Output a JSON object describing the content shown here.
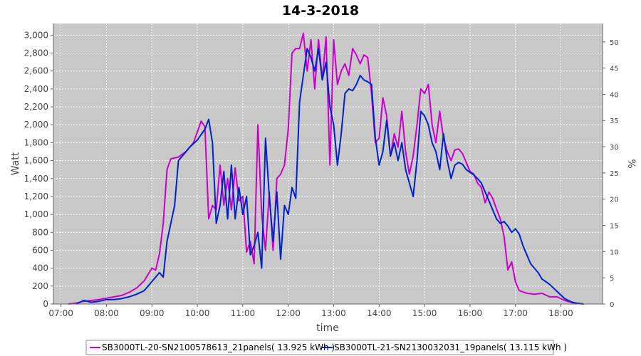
{
  "chart_data": {
    "type": "line",
    "title": "14-3-2018",
    "xlabel": "time",
    "ylabel": "Watt",
    "ylabel_right": "%",
    "x_ticks": [
      "07:00",
      "08:00",
      "09:00",
      "10:00",
      "11:00",
      "12:00",
      "13:00",
      "14:00",
      "15:00",
      "16:00",
      "17:00",
      "18:00"
    ],
    "y_ticks": [
      "0",
      "200",
      "400",
      "600",
      "800",
      "1,000",
      "1,200",
      "1,400",
      "1,600",
      "1,800",
      "2,000",
      "2,200",
      "2,400",
      "2,600",
      "2,800",
      "3,000"
    ],
    "y_right_ticks": [
      "0",
      "5",
      "10",
      "15",
      "20",
      "25",
      "30",
      "35",
      "40",
      "45",
      "50"
    ],
    "xlim": [
      "06:50",
      "18:55"
    ],
    "ylim": [
      0,
      3130
    ],
    "grid": true,
    "background": "#c8c8c8",
    "legend_position": "bottom",
    "series": [
      {
        "name": "SB3000TL-20-SN2100578613_21panels( 13.925 kWh )",
        "color": "#cc00cc",
        "points": [
          [
            "07:10",
            0
          ],
          [
            "07:20",
            10
          ],
          [
            "07:30",
            30
          ],
          [
            "07:40",
            40
          ],
          [
            "07:50",
            50
          ],
          [
            "08:00",
            65
          ],
          [
            "08:10",
            80
          ],
          [
            "08:20",
            95
          ],
          [
            "08:30",
            130
          ],
          [
            "08:40",
            180
          ],
          [
            "08:50",
            260
          ],
          [
            "09:00",
            400
          ],
          [
            "09:05",
            380
          ],
          [
            "09:10",
            560
          ],
          [
            "09:15",
            900
          ],
          [
            "09:20",
            1500
          ],
          [
            "09:25",
            1620
          ],
          [
            "09:35",
            1640
          ],
          [
            "09:45",
            1700
          ],
          [
            "09:55",
            1800
          ],
          [
            "10:05",
            2040
          ],
          [
            "10:10",
            1980
          ],
          [
            "10:15",
            950
          ],
          [
            "10:20",
            1100
          ],
          [
            "10:25",
            1050
          ],
          [
            "10:30",
            1550
          ],
          [
            "10:35",
            1100
          ],
          [
            "10:40",
            1400
          ],
          [
            "10:45",
            1050
          ],
          [
            "10:50",
            1520
          ],
          [
            "10:55",
            1150
          ],
          [
            "11:00",
            1200
          ],
          [
            "11:05",
            580
          ],
          [
            "11:10",
            700
          ],
          [
            "11:15",
            450
          ],
          [
            "11:20",
            2000
          ],
          [
            "11:25",
            1000
          ],
          [
            "11:30",
            600
          ],
          [
            "11:35",
            1250
          ],
          [
            "11:40",
            600
          ],
          [
            "11:45",
            1400
          ],
          [
            "11:50",
            1450
          ],
          [
            "11:55",
            1550
          ],
          [
            "12:00",
            1950
          ],
          [
            "12:05",
            2800
          ],
          [
            "12:10",
            2850
          ],
          [
            "12:15",
            2850
          ],
          [
            "12:20",
            3020
          ],
          [
            "12:25",
            2600
          ],
          [
            "12:30",
            2950
          ],
          [
            "12:35",
            2400
          ],
          [
            "12:40",
            2950
          ],
          [
            "12:45",
            2500
          ],
          [
            "12:50",
            2980
          ],
          [
            "12:55",
            1550
          ],
          [
            "13:00",
            2950
          ],
          [
            "13:05",
            2450
          ],
          [
            "13:10",
            2600
          ],
          [
            "13:15",
            2680
          ],
          [
            "13:20",
            2550
          ],
          [
            "13:25",
            2850
          ],
          [
            "13:30",
            2780
          ],
          [
            "13:35",
            2680
          ],
          [
            "13:40",
            2780
          ],
          [
            "13:45",
            2750
          ],
          [
            "13:50",
            2350
          ],
          [
            "13:55",
            1800
          ],
          [
            "14:00",
            1850
          ],
          [
            "14:05",
            2300
          ],
          [
            "14:10",
            2100
          ],
          [
            "14:15",
            1650
          ],
          [
            "14:20",
            1900
          ],
          [
            "14:25",
            1750
          ],
          [
            "14:30",
            2150
          ],
          [
            "14:35",
            1700
          ],
          [
            "14:40",
            1450
          ],
          [
            "14:45",
            1650
          ],
          [
            "14:50",
            2000
          ],
          [
            "14:55",
            2400
          ],
          [
            "15:00",
            2350
          ],
          [
            "15:05",
            2450
          ],
          [
            "15:10",
            2000
          ],
          [
            "15:15",
            1800
          ],
          [
            "15:20",
            2150
          ],
          [
            "15:25",
            1850
          ],
          [
            "15:30",
            1700
          ],
          [
            "15:35",
            1600
          ],
          [
            "15:40",
            1720
          ],
          [
            "15:45",
            1730
          ],
          [
            "15:50",
            1680
          ],
          [
            "15:55",
            1580
          ],
          [
            "16:00",
            1480
          ],
          [
            "16:05",
            1450
          ],
          [
            "16:10",
            1350
          ],
          [
            "16:15",
            1300
          ],
          [
            "16:20",
            1130
          ],
          [
            "16:25",
            1250
          ],
          [
            "16:30",
            1180
          ],
          [
            "16:35",
            1060
          ],
          [
            "16:40",
            950
          ],
          [
            "16:45",
            750
          ],
          [
            "16:50",
            380
          ],
          [
            "16:55",
            470
          ],
          [
            "17:00",
            250
          ],
          [
            "17:05",
            150
          ],
          [
            "17:15",
            120
          ],
          [
            "17:25",
            110
          ],
          [
            "17:35",
            120
          ],
          [
            "17:45",
            80
          ],
          [
            "17:55",
            80
          ],
          [
            "18:05",
            40
          ],
          [
            "18:15",
            15
          ],
          [
            "18:25",
            5
          ],
          [
            "18:30",
            0
          ]
        ]
      },
      {
        "name": "SB3000TL-21-SN2130032031_19panels( 13.115 kWh )",
        "color": "#0022cc",
        "points": [
          [
            "07:20",
            0
          ],
          [
            "07:30",
            40
          ],
          [
            "07:40",
            20
          ],
          [
            "07:50",
            30
          ],
          [
            "08:00",
            50
          ],
          [
            "08:10",
            50
          ],
          [
            "08:20",
            60
          ],
          [
            "08:30",
            80
          ],
          [
            "08:40",
            110
          ],
          [
            "08:50",
            150
          ],
          [
            "09:00",
            250
          ],
          [
            "09:10",
            350
          ],
          [
            "09:15",
            300
          ],
          [
            "09:20",
            700
          ],
          [
            "09:30",
            1100
          ],
          [
            "09:35",
            1600
          ],
          [
            "09:40",
            1650
          ],
          [
            "09:50",
            1750
          ],
          [
            "10:00",
            1830
          ],
          [
            "10:10",
            1950
          ],
          [
            "10:15",
            2060
          ],
          [
            "10:20",
            1800
          ],
          [
            "10:25",
            900
          ],
          [
            "10:30",
            1100
          ],
          [
            "10:35",
            1480
          ],
          [
            "10:40",
            950
          ],
          [
            "10:45",
            1550
          ],
          [
            "10:50",
            950
          ],
          [
            "10:55",
            1300
          ],
          [
            "11:00",
            1000
          ],
          [
            "11:05",
            1200
          ],
          [
            "11:10",
            550
          ],
          [
            "11:15",
            650
          ],
          [
            "11:20",
            800
          ],
          [
            "11:25",
            400
          ],
          [
            "11:30",
            1850
          ],
          [
            "11:35",
            1200
          ],
          [
            "11:40",
            700
          ],
          [
            "11:45",
            1250
          ],
          [
            "11:50",
            500
          ],
          [
            "11:55",
            1100
          ],
          [
            "12:00",
            1000
          ],
          [
            "12:05",
            1300
          ],
          [
            "12:10",
            1180
          ],
          [
            "12:15",
            2250
          ],
          [
            "12:20",
            2550
          ],
          [
            "12:25",
            2850
          ],
          [
            "12:30",
            2750
          ],
          [
            "12:35",
            2600
          ],
          [
            "12:40",
            2850
          ],
          [
            "12:45",
            2500
          ],
          [
            "12:50",
            2700
          ],
          [
            "12:55",
            2200
          ],
          [
            "13:00",
            2000
          ],
          [
            "13:05",
            1550
          ],
          [
            "13:10",
            1900
          ],
          [
            "13:15",
            2350
          ],
          [
            "13:20",
            2400
          ],
          [
            "13:25",
            2380
          ],
          [
            "13:30",
            2450
          ],
          [
            "13:35",
            2550
          ],
          [
            "13:40",
            2500
          ],
          [
            "13:45",
            2480
          ],
          [
            "13:50",
            2450
          ],
          [
            "13:55",
            1850
          ],
          [
            "14:00",
            1550
          ],
          [
            "14:05",
            1700
          ],
          [
            "14:10",
            2050
          ],
          [
            "14:15",
            1650
          ],
          [
            "14:20",
            1800
          ],
          [
            "14:25",
            1600
          ],
          [
            "14:30",
            1800
          ],
          [
            "14:35",
            1500
          ],
          [
            "14:40",
            1350
          ],
          [
            "14:45",
            1200
          ],
          [
            "14:50",
            1600
          ],
          [
            "14:55",
            2150
          ],
          [
            "15:00",
            2100
          ],
          [
            "15:05",
            2000
          ],
          [
            "15:10",
            1800
          ],
          [
            "15:15",
            1700
          ],
          [
            "15:20",
            1500
          ],
          [
            "15:25",
            1900
          ],
          [
            "15:30",
            1600
          ],
          [
            "15:35",
            1400
          ],
          [
            "15:40",
            1550
          ],
          [
            "15:45",
            1580
          ],
          [
            "15:50",
            1560
          ],
          [
            "15:55",
            1500
          ],
          [
            "16:00",
            1470
          ],
          [
            "16:05",
            1440
          ],
          [
            "16:10",
            1400
          ],
          [
            "16:15",
            1350
          ],
          [
            "16:20",
            1250
          ],
          [
            "16:25",
            1150
          ],
          [
            "16:30",
            1050
          ],
          [
            "16:35",
            950
          ],
          [
            "16:40",
            900
          ],
          [
            "16:45",
            920
          ],
          [
            "16:50",
            870
          ],
          [
            "16:55",
            800
          ],
          [
            "17:00",
            840
          ],
          [
            "17:05",
            780
          ],
          [
            "17:10",
            650
          ],
          [
            "17:15",
            550
          ],
          [
            "17:20",
            450
          ],
          [
            "17:25",
            400
          ],
          [
            "17:30",
            350
          ],
          [
            "17:35",
            280
          ],
          [
            "17:40",
            250
          ],
          [
            "17:45",
            220
          ],
          [
            "17:50",
            180
          ],
          [
            "17:55",
            140
          ],
          [
            "18:00",
            100
          ],
          [
            "18:05",
            60
          ],
          [
            "18:10",
            40
          ],
          [
            "18:15",
            20
          ],
          [
            "18:20",
            10
          ],
          [
            "18:25",
            5
          ],
          [
            "18:30",
            0
          ]
        ]
      }
    ]
  }
}
